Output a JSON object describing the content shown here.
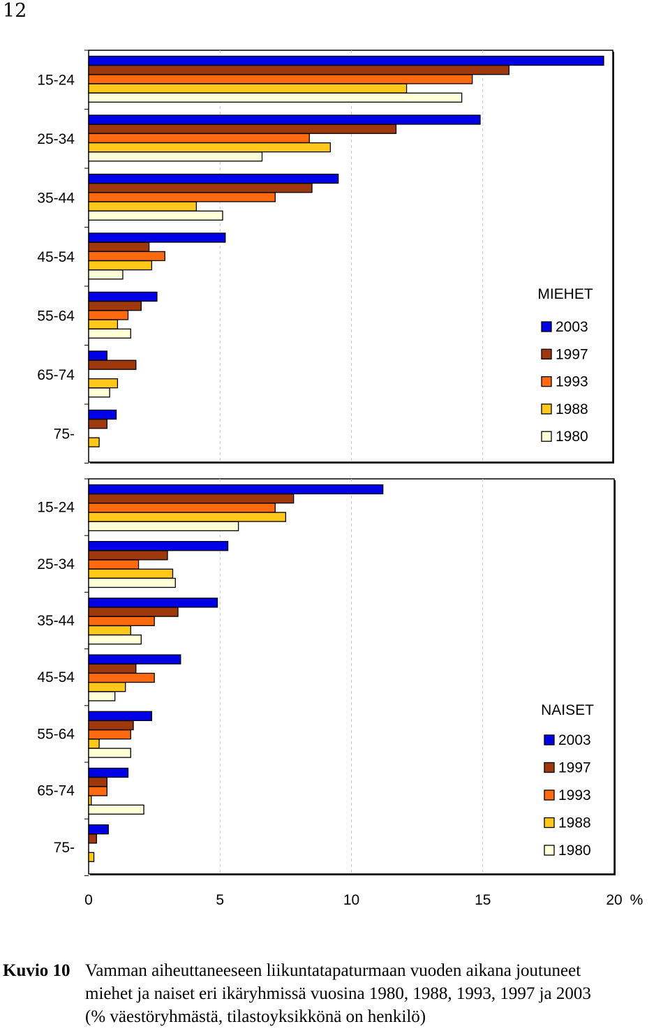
{
  "page_number": "12",
  "series_colors": {
    "2003": "#0000e6",
    "1997": "#a0380e",
    "1993": "#ff6a10",
    "1988": "#ffc81a",
    "1980": "#ffffd8"
  },
  "x_ticks": [
    "0",
    "5",
    "10",
    "15",
    "20"
  ],
  "x_unit": "%",
  "chart_data": [
    {
      "type": "bar",
      "orientation": "horizontal",
      "title": "MIEHET",
      "categories": [
        "15-24",
        "25-34",
        "35-44",
        "45-54",
        "55-64",
        "65-74",
        "75-"
      ],
      "xlim": [
        0,
        20
      ],
      "grid": "vertical dashed",
      "legend_position": "right",
      "series": [
        {
          "name": "2003",
          "values": [
            19.6,
            14.9,
            9.5,
            5.2,
            2.6,
            0.7,
            1.05
          ]
        },
        {
          "name": "1997",
          "values": [
            16.0,
            11.7,
            8.5,
            2.3,
            2.0,
            1.8,
            0.7
          ]
        },
        {
          "name": "1993",
          "values": [
            14.6,
            8.4,
            7.1,
            2.9,
            1.5,
            0.0,
            0.0
          ]
        },
        {
          "name": "1988",
          "values": [
            12.1,
            9.2,
            4.1,
            2.4,
            1.1,
            1.1,
            0.4
          ]
        },
        {
          "name": "1980",
          "values": [
            14.2,
            6.6,
            5.1,
            1.3,
            1.6,
            0.8,
            0.0
          ]
        }
      ]
    },
    {
      "type": "bar",
      "orientation": "horizontal",
      "title": "NAISET",
      "categories": [
        "15-24",
        "25-34",
        "35-44",
        "45-54",
        "55-64",
        "65-74",
        "75-"
      ],
      "xlim": [
        0,
        20
      ],
      "grid": "vertical dashed",
      "legend_position": "right",
      "series": [
        {
          "name": "2003",
          "values": [
            11.2,
            5.3,
            4.9,
            3.5,
            2.4,
            1.5,
            0.75
          ]
        },
        {
          "name": "1997",
          "values": [
            7.8,
            3.0,
            3.4,
            1.8,
            1.7,
            0.7,
            0.3
          ]
        },
        {
          "name": "1993",
          "values": [
            7.1,
            1.9,
            2.5,
            2.5,
            1.6,
            0.7,
            0.0
          ]
        },
        {
          "name": "1988",
          "values": [
            7.5,
            3.2,
            1.6,
            1.4,
            0.4,
            0.1,
            0.2
          ]
        },
        {
          "name": "1980",
          "values": [
            5.7,
            3.3,
            2.0,
            1.0,
            1.6,
            2.1,
            0.0
          ]
        }
      ]
    }
  ],
  "caption": {
    "label": "Kuvio 10",
    "line1": "Vamman aiheuttaneeseen liikuntatapaturmaan vuoden aikana joutuneet",
    "line2": "miehet ja naiset eri ikäryhmissä vuosina 1980, 1988, 1993, 1997 ja 2003",
    "line3": "(% väestöryhmästä, tilastoyksikkönä on henkilö)"
  }
}
